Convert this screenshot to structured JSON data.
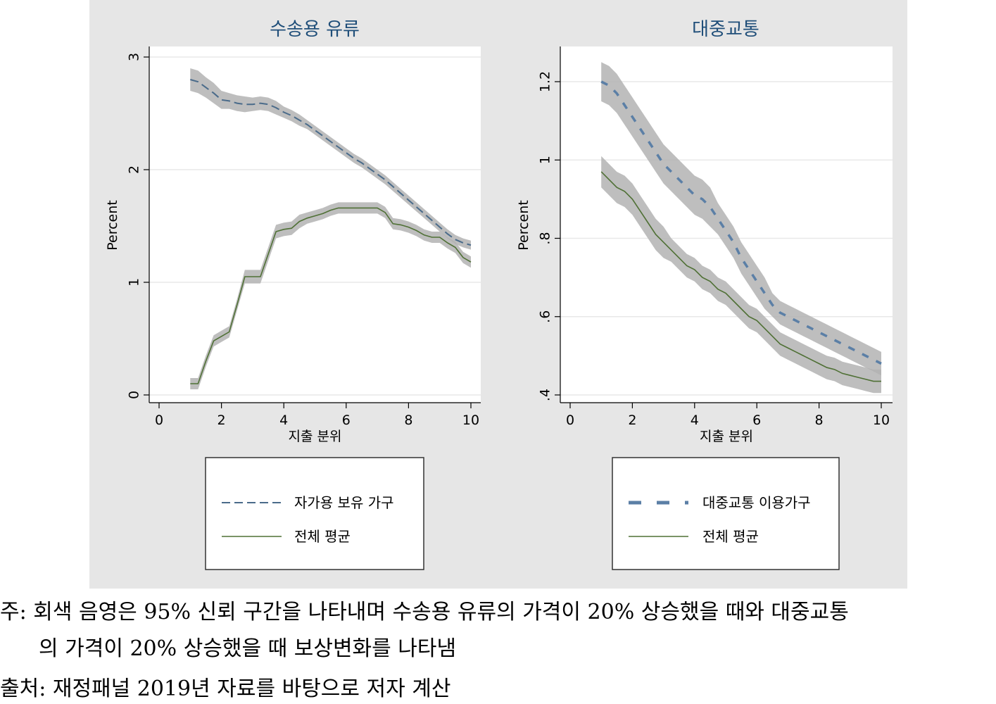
{
  "chart_data": [
    {
      "type": "line",
      "title": "수송용 유류",
      "xlabel": "지출 분위",
      "ylabel": "Percent",
      "xlim": [
        0,
        10
      ],
      "ylim": [
        0,
        3
      ],
      "x_ticks": [
        0,
        2,
        4,
        6,
        8,
        10
      ],
      "y_ticks": [
        {
          "v": 0,
          "label": "0"
        },
        {
          "v": 1,
          "label": "1"
        },
        {
          "v": 2,
          "label": "2"
        },
        {
          "v": 3,
          "label": "3"
        }
      ],
      "grid": true,
      "confidence_band": true,
      "colors": {
        "car": "#4a6b8a",
        "avg": "#4f7035",
        "band": "#b3b3b3"
      },
      "series": [
        {
          "name": "자가용 보유 가구",
          "style": "dash",
          "x": [
            1,
            1.25,
            1.5,
            1.75,
            2,
            2.25,
            2.5,
            2.75,
            3,
            3.25,
            3.5,
            3.75,
            4,
            4.25,
            4.5,
            4.75,
            5,
            5.25,
            5.5,
            5.75,
            6,
            6.25,
            6.5,
            6.75,
            7,
            7.25,
            7.5,
            7.75,
            8,
            8.25,
            8.5,
            8.75,
            9,
            9.25,
            9.5,
            9.75,
            10
          ],
          "y": [
            2.8,
            2.78,
            2.73,
            2.68,
            2.62,
            2.61,
            2.59,
            2.58,
            2.58,
            2.59,
            2.58,
            2.55,
            2.51,
            2.48,
            2.44,
            2.4,
            2.35,
            2.3,
            2.25,
            2.2,
            2.15,
            2.1,
            2.06,
            2.01,
            1.96,
            1.91,
            1.85,
            1.79,
            1.73,
            1.67,
            1.61,
            1.55,
            1.49,
            1.43,
            1.38,
            1.35,
            1.33
          ],
          "ci": [
            0.1,
            0.1,
            0.09,
            0.09,
            0.08,
            0.07,
            0.07,
            0.07,
            0.06,
            0.06,
            0.06,
            0.06,
            0.05,
            0.05,
            0.05,
            0.04,
            0.04,
            0.04,
            0.04,
            0.04,
            0.04,
            0.04,
            0.04,
            0.04,
            0.04,
            0.04,
            0.04,
            0.04,
            0.04,
            0.04,
            0.04,
            0.04,
            0.04,
            0.04,
            0.04,
            0.04,
            0.04
          ]
        },
        {
          "name": "전체 평균",
          "style": "solid",
          "x": [
            1,
            1.25,
            1.5,
            1.75,
            2,
            2.25,
            2.5,
            2.75,
            3,
            3.25,
            3.5,
            3.75,
            4,
            4.25,
            4.5,
            4.75,
            5,
            5.25,
            5.5,
            5.75,
            6,
            6.25,
            6.5,
            6.75,
            7,
            7.25,
            7.5,
            7.75,
            8,
            8.25,
            8.5,
            8.75,
            9,
            9.25,
            9.5,
            9.75,
            10
          ],
          "y": [
            0.1,
            0.1,
            0.3,
            0.48,
            0.52,
            0.56,
            0.8,
            1.05,
            1.05,
            1.05,
            1.25,
            1.45,
            1.47,
            1.48,
            1.54,
            1.57,
            1.59,
            1.61,
            1.64,
            1.66,
            1.66,
            1.66,
            1.66,
            1.66,
            1.66,
            1.62,
            1.52,
            1.51,
            1.49,
            1.46,
            1.42,
            1.4,
            1.4,
            1.35,
            1.31,
            1.22,
            1.18
          ],
          "ci": [
            0.05,
            0.05,
            0.05,
            0.05,
            0.05,
            0.05,
            0.05,
            0.06,
            0.06,
            0.06,
            0.06,
            0.06,
            0.06,
            0.06,
            0.06,
            0.05,
            0.05,
            0.05,
            0.05,
            0.05,
            0.05,
            0.05,
            0.05,
            0.05,
            0.05,
            0.05,
            0.05,
            0.05,
            0.05,
            0.05,
            0.05,
            0.05,
            0.05,
            0.05,
            0.05,
            0.05,
            0.05
          ]
        }
      ]
    },
    {
      "type": "line",
      "title": "대중교통",
      "xlabel": "지출 분위",
      "ylabel": "Percent",
      "xlim": [
        0,
        10
      ],
      "ylim": [
        0.4,
        1.26
      ],
      "x_ticks": [
        0,
        2,
        4,
        6,
        8,
        10
      ],
      "y_ticks": [
        {
          "v": 0.4,
          "label": ".4"
        },
        {
          "v": 0.6,
          "label": ".6"
        },
        {
          "v": 0.8,
          "label": ".8"
        },
        {
          "v": 1.0,
          "label": "1"
        },
        {
          "v": 1.2,
          "label": "1.2"
        }
      ],
      "grid": true,
      "confidence_band": true,
      "colors": {
        "transit": "#5b7fa6",
        "avg": "#4f7035",
        "band": "#b3b3b3"
      },
      "series": [
        {
          "name": "대중교통 이용가구",
          "style": "dash",
          "x": [
            1,
            1.25,
            1.5,
            1.75,
            2,
            2.25,
            2.5,
            2.75,
            3,
            3.25,
            3.5,
            3.75,
            4,
            4.25,
            4.5,
            4.75,
            5,
            5.25,
            5.5,
            5.75,
            6,
            6.25,
            6.5,
            6.75,
            7,
            7.25,
            7.5,
            7.75,
            8,
            8.25,
            8.5,
            8.75,
            9,
            9.25,
            9.5,
            9.75,
            10
          ],
          "y": [
            1.2,
            1.19,
            1.17,
            1.14,
            1.11,
            1.08,
            1.05,
            1.02,
            0.99,
            0.97,
            0.95,
            0.93,
            0.91,
            0.9,
            0.88,
            0.85,
            0.82,
            0.79,
            0.75,
            0.72,
            0.69,
            0.66,
            0.63,
            0.61,
            0.6,
            0.59,
            0.58,
            0.57,
            0.56,
            0.55,
            0.54,
            0.53,
            0.52,
            0.51,
            0.5,
            0.49,
            0.48
          ],
          "ci": [
            0.05,
            0.05,
            0.05,
            0.05,
            0.05,
            0.05,
            0.05,
            0.05,
            0.05,
            0.05,
            0.05,
            0.05,
            0.05,
            0.05,
            0.05,
            0.04,
            0.04,
            0.04,
            0.04,
            0.04,
            0.04,
            0.04,
            0.03,
            0.03,
            0.03,
            0.03,
            0.03,
            0.03,
            0.03,
            0.03,
            0.03,
            0.03,
            0.03,
            0.03,
            0.03,
            0.03,
            0.03
          ]
        },
        {
          "name": "전체 평균",
          "style": "solid",
          "x": [
            1,
            1.25,
            1.5,
            1.75,
            2,
            2.25,
            2.5,
            2.75,
            3,
            3.25,
            3.5,
            3.75,
            4,
            4.25,
            4.5,
            4.75,
            5,
            5.25,
            5.5,
            5.75,
            6,
            6.25,
            6.5,
            6.75,
            7,
            7.25,
            7.5,
            7.75,
            8,
            8.25,
            8.5,
            8.75,
            9,
            9.25,
            9.5,
            9.75,
            10
          ],
          "y": [
            0.97,
            0.95,
            0.93,
            0.92,
            0.9,
            0.87,
            0.84,
            0.81,
            0.79,
            0.77,
            0.75,
            0.73,
            0.72,
            0.7,
            0.69,
            0.67,
            0.66,
            0.64,
            0.62,
            0.6,
            0.59,
            0.57,
            0.55,
            0.53,
            0.52,
            0.51,
            0.5,
            0.49,
            0.48,
            0.47,
            0.465,
            0.455,
            0.45,
            0.445,
            0.44,
            0.435,
            0.435
          ],
          "ci": [
            0.04,
            0.04,
            0.04,
            0.04,
            0.04,
            0.04,
            0.04,
            0.04,
            0.04,
            0.03,
            0.03,
            0.03,
            0.03,
            0.03,
            0.03,
            0.03,
            0.03,
            0.03,
            0.03,
            0.03,
            0.03,
            0.03,
            0.03,
            0.03,
            0.03,
            0.03,
            0.03,
            0.03,
            0.03,
            0.03,
            0.03,
            0.03,
            0.03,
            0.03,
            0.03,
            0.03,
            0.03
          ]
        }
      ]
    }
  ],
  "notes": {
    "note_line1": "주: 회색 음영은 95% 신뢰 구간을 나타내며 수송용 유류의 가격이 20% 상승했을 때와 대중교통",
    "note_line2": "의 가격이 20% 상승했을 때 보상변화를 나타냄",
    "source": "출처: 재정패널 2019년 자료를 바탕으로 저자 계산"
  }
}
